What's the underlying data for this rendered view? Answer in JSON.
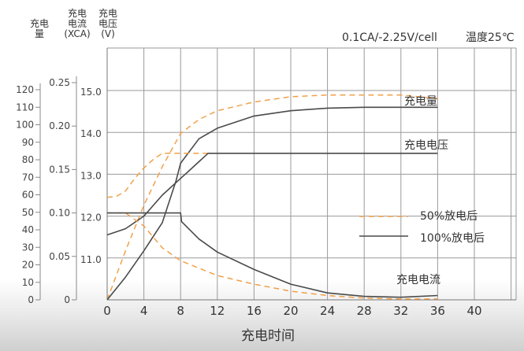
{
  "chart_data": {
    "type": "line",
    "condition": "0.1CA/-2.25V/cell",
    "temperature": "温度25℃",
    "xlabel": "充电时间",
    "x_ticks": [
      "0",
      "4",
      "8",
      "12",
      "16",
      "20",
      "24",
      "28",
      "32",
      "36",
      "40"
    ],
    "xlim": [
      0,
      40
    ],
    "axes": [
      {
        "id": "capacity",
        "label_lines": [
          "充电",
          "量"
        ],
        "ticks": [
          "0",
          "10",
          "20",
          "30",
          "40",
          "50",
          "60",
          "70",
          "80",
          "90",
          "100",
          "110",
          "120"
        ],
        "range": [
          0,
          120
        ]
      },
      {
        "id": "current",
        "label_lines": [
          "充电",
          "电流",
          "(XCA)"
        ],
        "ticks": [
          "0",
          "0.05",
          "0.10",
          "0.15",
          "0.20",
          "0.25"
        ],
        "range": [
          0,
          0.25
        ]
      },
      {
        "id": "voltage",
        "label_lines": [
          "充电",
          "电压",
          "(V)"
        ],
        "ticks": [
          "11.0",
          "12.0",
          "13.0",
          "14.0",
          "15.0"
        ],
        "range": [
          10,
          15
        ]
      }
    ],
    "legend": [
      {
        "label": "50%放电后",
        "style": "dashed",
        "color": "#f0a04a"
      },
      {
        "label": "100%放电后",
        "style": "solid",
        "color": "#4a4a4a"
      }
    ],
    "annotations": {
      "capacity": "充电量",
      "voltage": "充电电压",
      "current": "充电电流"
    },
    "series": [
      {
        "group": "capacity",
        "style": "dashed",
        "axis": "capacity",
        "x": [
          0,
          2,
          4,
          6,
          8,
          10,
          12,
          16,
          20,
          24,
          28,
          32,
          36
        ],
        "y": [
          0,
          28,
          54,
          76,
          95,
          103,
          108,
          113,
          116,
          117,
          117,
          117,
          115
        ]
      },
      {
        "group": "capacity",
        "style": "solid",
        "axis": "capacity",
        "x": [
          0,
          2,
          4,
          6,
          7.5,
          8,
          10,
          12,
          16,
          20,
          24,
          28,
          32,
          36
        ],
        "y": [
          0,
          13,
          28,
          44,
          68,
          78,
          92,
          98,
          105,
          108,
          109.5,
          110,
          110,
          110
        ]
      },
      {
        "group": "voltage",
        "style": "dashed",
        "axis": "voltage",
        "x": [
          0,
          1,
          2,
          3,
          4,
          5,
          6,
          6.6,
          36
        ],
        "y": [
          12.45,
          12.47,
          12.6,
          12.9,
          13.15,
          13.35,
          13.5,
          13.5,
          13.5
        ]
      },
      {
        "group": "voltage",
        "style": "solid",
        "axis": "voltage",
        "x": [
          0,
          2,
          4,
          6,
          8,
          9,
          10,
          11,
          12,
          16,
          20,
          24,
          28,
          32,
          36
        ],
        "y": [
          11.55,
          11.7,
          12.0,
          12.5,
          12.9,
          13.1,
          13.3,
          13.5,
          13.5,
          13.5,
          13.5,
          13.5,
          13.5,
          13.5,
          13.5
        ]
      },
      {
        "group": "current",
        "style": "dashed",
        "axis": "current",
        "x": [
          0,
          2,
          4,
          6,
          8,
          12,
          16,
          20,
          24,
          28,
          32,
          36
        ],
        "y": [
          0.1,
          0.1,
          0.085,
          0.06,
          0.045,
          0.028,
          0.018,
          0.01,
          0.005,
          0.002,
          0.001,
          0.001
        ]
      },
      {
        "group": "current",
        "style": "solid",
        "axis": "current",
        "x": [
          0,
          2,
          4,
          6,
          7,
          8,
          8.1,
          10,
          12,
          16,
          20,
          24,
          28,
          32,
          36
        ],
        "y": [
          0.1,
          0.1,
          0.1,
          0.1,
          0.1,
          0.1,
          0.09,
          0.07,
          0.055,
          0.035,
          0.018,
          0.008,
          0.004,
          0.003,
          0.005
        ]
      }
    ]
  }
}
